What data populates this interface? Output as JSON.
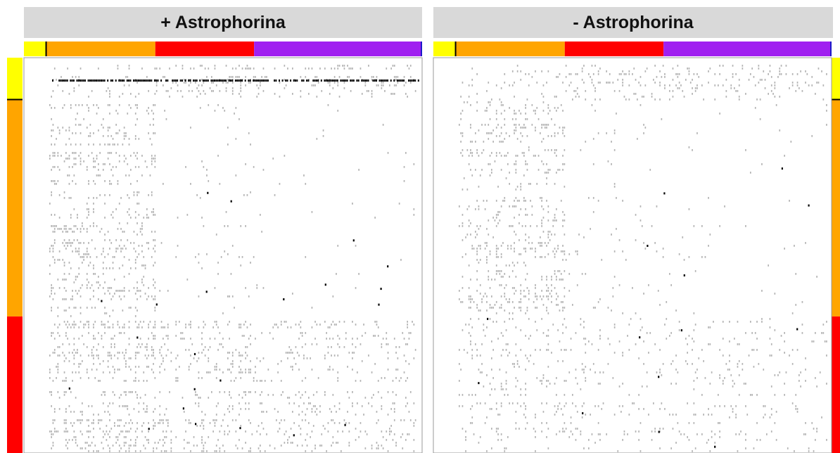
{
  "chart_data": {
    "type": "heatmap",
    "panels": [
      {
        "title": "+ Astrophorina",
        "variant": "plus"
      },
      {
        "title": "- Astrophorina",
        "variant": "minus"
      }
    ],
    "group_colors": [
      "#ffff00",
      "#ffa500",
      "#ff0000",
      "#a020f0"
    ],
    "groups": [
      {
        "color": "#ffff00",
        "fraction": 0.054
      },
      {
        "color": "#ffa500",
        "fraction": 0.276
      },
      {
        "color": "#ff0000",
        "fraction": 0.248
      },
      {
        "color": "#a020f0",
        "fraction": 0.422
      }
    ],
    "cell_colors": {
      "background": "#ffffff",
      "shared": "#b4b4b4",
      "unique": "#000000"
    },
    "xlabel": "",
    "ylabel": "",
    "legend": "none",
    "grid": false
  }
}
